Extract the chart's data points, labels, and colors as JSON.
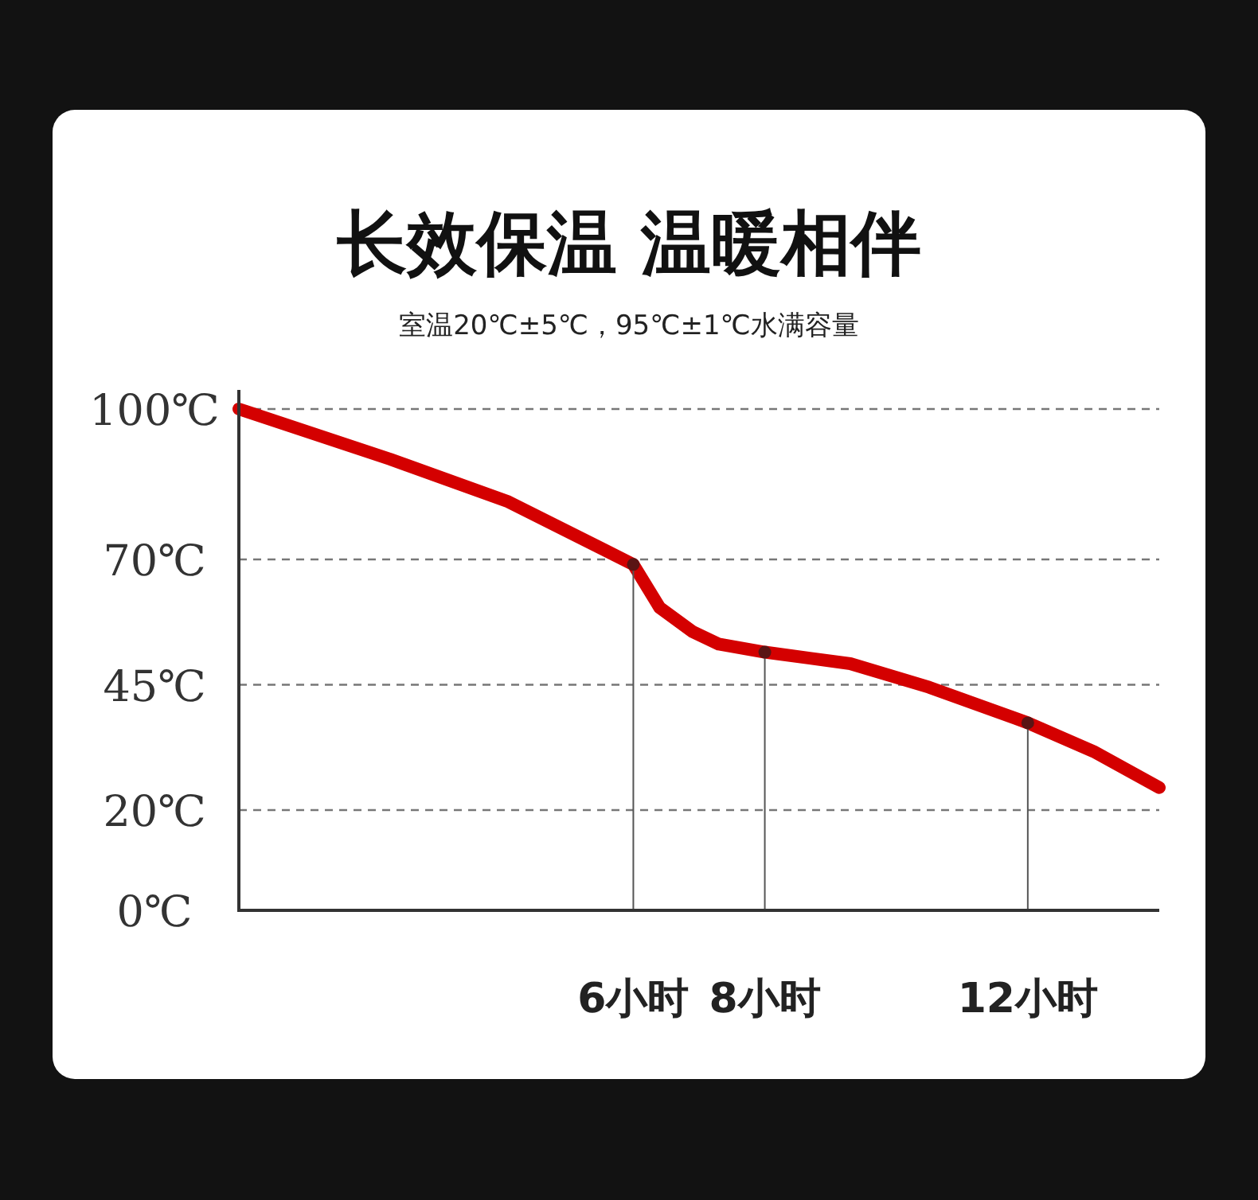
{
  "chart_data": {
    "type": "line",
    "title": "长效保温 温暖相伴",
    "subtitle": "室温20℃±5℃，95℃±1℃水满容量",
    "x": [
      0,
      2.3,
      4.1,
      6,
      6.4,
      6.9,
      7.3,
      8,
      9.3,
      10.5,
      12,
      13,
      14
    ],
    "series": [
      {
        "type": "line",
        "marker": "none",
        "color": "#d40000",
        "values": [
          100,
          90,
          81.5,
          69,
          60.4,
          55.6,
          53.1,
          51.5,
          49.2,
          44.5,
          37.4,
          31.7,
          24.5
        ]
      },
      {
        "type": "lollipop",
        "marker": "circle",
        "color": "#5a1414",
        "x": [
          6,
          8,
          12
        ],
        "values": [
          69,
          51.5,
          37.4
        ]
      }
    ],
    "xlim": [
      0,
      14
    ],
    "xticks": [
      {
        "value": 6,
        "label": "6小时"
      },
      {
        "value": 8,
        "label": "8小时"
      },
      {
        "value": 12,
        "label": "12小时"
      }
    ],
    "ylim": [
      0,
      100
    ],
    "yticks": [
      {
        "value": 0,
        "label": "0℃"
      },
      {
        "value": 20,
        "label": "20℃"
      },
      {
        "value": 45,
        "label": "45℃"
      },
      {
        "value": 70,
        "label": "70℃"
      },
      {
        "value": 100,
        "label": "100℃"
      }
    ],
    "grid": "y",
    "line_style": "solid"
  }
}
